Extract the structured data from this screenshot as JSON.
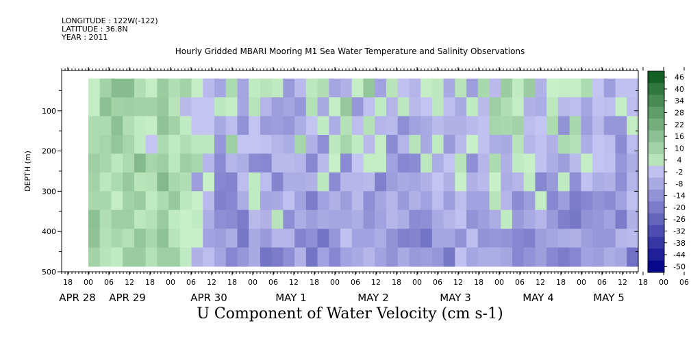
{
  "header": {
    "longitude": "LONGITUDE : 122W(-122)",
    "latitude": "LATITUDE : 36.8N",
    "year": "YEAR : 2011"
  },
  "chart_data": {
    "type": "heatmap",
    "title": "Hourly Gridded MBARI Mooring M1 Sea Water Temperature and Salinity Observations",
    "xlabel": "U Component of Water Velocity (cm s-1)",
    "ylabel": "DEPTH (m)",
    "y_reversed": true,
    "ylim": [
      0,
      500
    ],
    "y_ticks": [
      100,
      200,
      300,
      400,
      500
    ],
    "x_hour_ticks": [
      "18",
      "00",
      "06",
      "12",
      "18",
      "00",
      "06",
      "12",
      "18",
      "00",
      "06",
      "12",
      "18",
      "00",
      "06",
      "12",
      "18",
      "00",
      "06",
      "12",
      "18",
      "00",
      "06",
      "12",
      "18",
      "00",
      "06",
      "12",
      "18",
      "00",
      "06",
      "12"
    ],
    "x_date_labels": [
      "APR 28",
      "APR 29",
      "APR 30",
      "MAY  1",
      "MAY  2",
      "MAY  3",
      "MAY  4",
      "MAY  5"
    ],
    "colorbar": {
      "min": -50,
      "max": 50,
      "step": 6,
      "labels": [
        "46",
        "40",
        "34",
        "28",
        "22",
        "16",
        "10",
        "4",
        "-2",
        "-8",
        "-14",
        "-20",
        "-26",
        "-32",
        "-38",
        "-44",
        "-50"
      ],
      "low_color": "#08088a",
      "mid_low_color": "#c8c8f5",
      "mid_high_color": "#c8f0c8",
      "high_color": "#0a5a1e"
    },
    "values": [
      [
        1,
        10,
        17,
        17,
        6,
        1,
        12,
        6,
        10,
        1,
        -4,
        -9,
        7,
        -9,
        2,
        4,
        2,
        -12,
        -4,
        3,
        6,
        -9,
        -6,
        1,
        14,
        -10,
        4,
        -2,
        -5,
        1,
        3,
        -8,
        4,
        -11,
        8,
        -4,
        12,
        2,
        12,
        -6,
        0,
        1,
        1,
        7,
        -1,
        -11,
        -2,
        -2
      ],
      [
        1,
        16,
        10,
        11,
        10,
        10,
        13,
        4,
        -4,
        -1,
        -1,
        3,
        1,
        -9,
        4,
        -5,
        -11,
        -9,
        -13,
        5,
        -8,
        1,
        13,
        -13,
        -2,
        2,
        -5,
        3,
        -4,
        -1,
        3,
        -3,
        -8,
        2,
        -4,
        11,
        6,
        1,
        -6,
        -7,
        3,
        -4,
        -3,
        -9,
        -2,
        -3,
        1,
        -3
      ],
      [
        7,
        7,
        16,
        6,
        2,
        1,
        15,
        10,
        2,
        -1,
        -1,
        -8,
        -3,
        -14,
        -1,
        -12,
        -11,
        -13,
        -7,
        -1,
        2,
        -7,
        5,
        -3,
        5,
        -5,
        -4,
        -15,
        -10,
        -8,
        -4,
        -6,
        -6,
        -4,
        -2,
        9,
        8,
        10,
        -3,
        -1,
        7,
        -14,
        8,
        -11,
        -4,
        -13,
        -13,
        1
      ],
      [
        7,
        9,
        14,
        9,
        2,
        -1,
        7,
        2,
        6,
        3,
        3,
        -13,
        11,
        -1,
        -1,
        -2,
        -5,
        -7,
        9,
        -6,
        -15,
        3,
        9,
        2,
        -4,
        1,
        -16,
        -5,
        4,
        -8,
        2,
        -12,
        -4,
        0,
        -2,
        -7,
        -8,
        4,
        -5,
        -2,
        -6,
        7,
        5,
        -7,
        -1,
        -3,
        -16,
        -3
      ],
      [
        11,
        8,
        3,
        7,
        18,
        9,
        11,
        3,
        11,
        8,
        -5,
        -16,
        -5,
        -7,
        -16,
        -17,
        -4,
        -4,
        -5,
        -17,
        -4,
        0,
        -16,
        -1,
        1,
        1,
        -10,
        -17,
        -16,
        3,
        -7,
        -1,
        4,
        -15,
        -5,
        7,
        -6,
        2,
        0,
        -2,
        -7,
        -11,
        -4,
        1,
        -1,
        -2,
        -13,
        -7
      ],
      [
        10,
        3,
        7,
        13,
        4,
        5,
        18,
        8,
        6,
        -11,
        0,
        -17,
        -18,
        -3,
        2,
        -3,
        -18,
        -7,
        -7,
        -6,
        3,
        -16,
        -5,
        -5,
        -4,
        -19,
        -11,
        -8,
        -9,
        -6,
        -1,
        -6,
        0,
        -6,
        -4,
        0,
        -7,
        -5,
        2,
        -17,
        -12,
        2,
        -15,
        -2,
        -7,
        -6,
        -15,
        -5
      ],
      [
        8,
        8,
        1,
        10,
        12,
        2,
        7,
        13,
        3,
        0,
        -4,
        -19,
        -17,
        -7,
        2,
        -9,
        -8,
        -2,
        -10,
        -20,
        -10,
        -6,
        -11,
        -4,
        -15,
        -9,
        -5,
        -12,
        -6,
        -10,
        -3,
        -11,
        -3,
        -10,
        -10,
        4,
        -5,
        -16,
        -11,
        1,
        -17,
        -11,
        -20,
        -17,
        -14,
        -16,
        -10,
        -2
      ],
      [
        16,
        6,
        11,
        11,
        3,
        5,
        12,
        2,
        0,
        2,
        -7,
        -15,
        -16,
        -20,
        -4,
        -6,
        4,
        -15,
        -7,
        -11,
        -8,
        -9,
        -9,
        -7,
        -14,
        -10,
        -5,
        -7,
        -16,
        -15,
        -8,
        -5,
        -2,
        -14,
        -11,
        -7,
        2,
        -12,
        -8,
        -5,
        -12,
        -19,
        -21,
        -14,
        -13,
        -10,
        -20,
        -6
      ],
      [
        15,
        5,
        8,
        5,
        14,
        8,
        15,
        4,
        0,
        0,
        -10,
        -11,
        -7,
        -21,
        -8,
        -12,
        -5,
        -5,
        -18,
        -15,
        -22,
        -13,
        -2,
        -10,
        -10,
        -7,
        -14,
        -19,
        -18,
        -22,
        -9,
        -9,
        -14,
        -3,
        -14,
        -13,
        -14,
        -17,
        -19,
        -11,
        -9,
        -7,
        -6,
        -11,
        -13,
        -13,
        -5,
        -4
      ],
      [
        10,
        4,
        2,
        12,
        12,
        5,
        11,
        11,
        2,
        -6,
        -3,
        -9,
        -17,
        -13,
        -8,
        -22,
        -20,
        -15,
        -6,
        -22,
        -10,
        -17,
        -10,
        -8,
        -5,
        -10,
        -14,
        -8,
        -12,
        -11,
        -13,
        -21,
        -2,
        -9,
        -7,
        -7,
        -9,
        -17,
        -14,
        -11,
        -17,
        -20,
        -17,
        -10,
        -11,
        -7,
        -9,
        -23
      ]
    ]
  }
}
